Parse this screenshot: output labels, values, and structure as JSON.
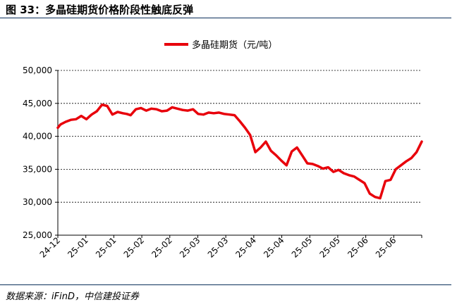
{
  "figure": {
    "title": "图 33：多晶硅期货价格阶段性触底反弹",
    "source": "数据来源：iFinD，中信建投证券"
  },
  "colors": {
    "series": "#e8000b",
    "rule": "#0b2f5b",
    "grid": "#000000"
  },
  "chart_data": {
    "type": "line",
    "title": "",
    "xlabel": "",
    "ylabel": "",
    "ylim": [
      25000,
      50000
    ],
    "yticks": [
      25000,
      30000,
      35000,
      40000,
      45000,
      50000
    ],
    "ytick_labels": [
      "25,000",
      "30,000",
      "35,000",
      "40,000",
      "45,000",
      "50,000"
    ],
    "xlim": [
      0,
      14
    ],
    "xtick_labels": [
      "24-12",
      "25-01",
      "25-01",
      "25-02",
      "25-02",
      "25-03",
      "25-03",
      "25-04",
      "25-04",
      "25-05",
      "25-05",
      "25-06",
      "25-06"
    ],
    "grid": "horizontal-dashed",
    "legend_position": "top-center",
    "series": [
      {
        "name": "多晶硅期货（元/吨）",
        "x": [
          0.0,
          0.1,
          0.3,
          0.5,
          0.7,
          0.9,
          1.1,
          1.3,
          1.5,
          1.7,
          1.9,
          2.1,
          2.3,
          2.5,
          2.65,
          2.8,
          3.0,
          3.2,
          3.4,
          3.6,
          3.8,
          4.0,
          4.2,
          4.4,
          4.6,
          4.8,
          5.0,
          5.2,
          5.4,
          5.6,
          5.8,
          6.0,
          6.2,
          6.4,
          6.6,
          6.8,
          7.0,
          7.2,
          7.4,
          7.6,
          7.8,
          8.0,
          8.2,
          8.4,
          8.6,
          8.8,
          9.0,
          9.2,
          9.4,
          9.6,
          9.8,
          10.0,
          10.2,
          10.4,
          10.6,
          10.8,
          11.0,
          11.2,
          11.4,
          11.6,
          11.8,
          12.0,
          12.2,
          12.4,
          12.6,
          12.8,
          13.0,
          13.2,
          13.4,
          13.6,
          13.8,
          14.0
        ],
        "values": [
          41300,
          41800,
          42200,
          42500,
          42600,
          43100,
          42600,
          43300,
          43800,
          44800,
          44600,
          43300,
          43700,
          43500,
          43400,
          43200,
          44100,
          44300,
          43900,
          44200,
          44100,
          43800,
          43900,
          44400,
          44200,
          44000,
          43900,
          44100,
          43400,
          43300,
          43600,
          43500,
          43600,
          43400,
          43300,
          43200,
          42300,
          41300,
          40200,
          37600,
          38300,
          39200,
          37800,
          37100,
          36300,
          35600,
          37700,
          38300,
          37100,
          35900,
          35800,
          35500,
          35100,
          35300,
          34600,
          34900,
          34400,
          34100,
          33900,
          33400,
          32900,
          31300,
          30800,
          30600,
          33200,
          33400,
          35000,
          35600,
          36200,
          36700,
          37600,
          39200
        ]
      }
    ]
  }
}
